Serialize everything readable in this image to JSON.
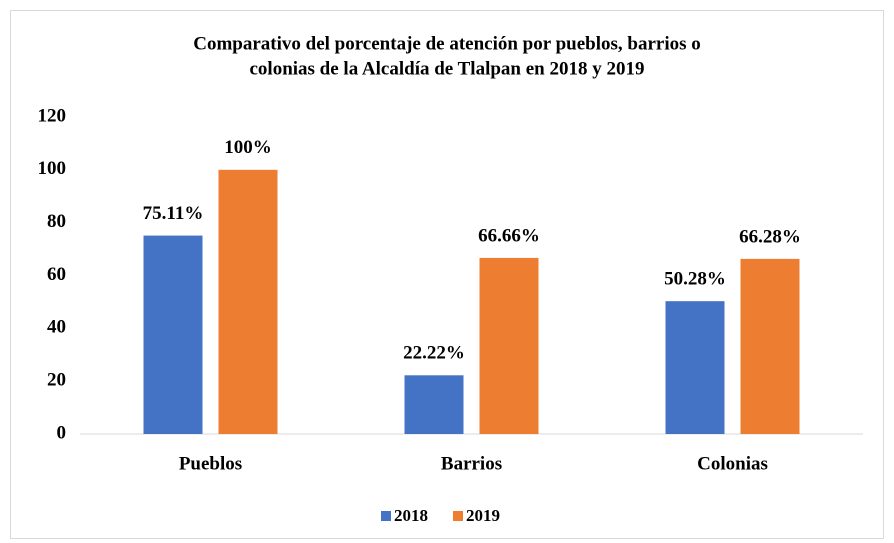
{
  "chart_data": {
    "type": "bar",
    "title": [
      "Comparativo del porcentaje de atención por pueblos, barrios o",
      "colonias de la Alcaldía de Tlalpan en 2018 y 2019"
    ],
    "categories": [
      "Pueblos",
      "Barrios",
      "Colonias"
    ],
    "series": [
      {
        "name": "2018",
        "color": "#4472c4",
        "values": [
          75.11,
          22.22,
          50.28
        ],
        "value_labels": [
          "75.11%",
          "22.22%",
          "50.28%"
        ]
      },
      {
        "name": "2019",
        "color": "#ed7d31",
        "values": [
          100,
          66.66,
          66.28
        ],
        "value_labels": [
          "100%",
          "66.66%",
          "66.28%"
        ]
      }
    ],
    "ylim": [
      0,
      120
    ],
    "yticks": [
      0,
      20,
      40,
      60,
      80,
      100,
      120
    ],
    "grid": false,
    "legend": "bottom"
  }
}
